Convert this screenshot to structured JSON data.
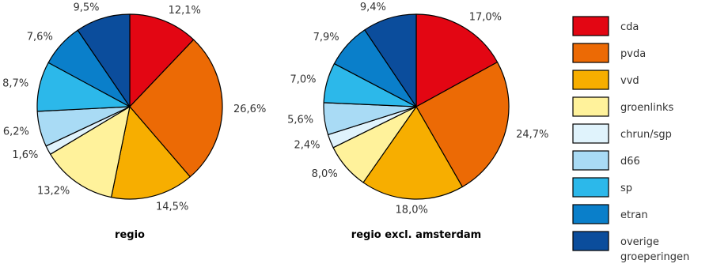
{
  "chart_data": [
    {
      "type": "pie",
      "title": "regio",
      "categories": [
        "cda",
        "pvda",
        "vvd",
        "groenlinks",
        "chrun/sgp",
        "d66",
        "sp",
        "etran",
        "overige groeperingen"
      ],
      "values": [
        12.1,
        26.6,
        14.5,
        13.2,
        1.6,
        6.2,
        8.7,
        7.6,
        9.5
      ],
      "value_labels": [
        "12,1%",
        "26,6%",
        "14,5%",
        "13,2%",
        "1,6%",
        "6,2%",
        "8,7%",
        "7,6%",
        "9,5%"
      ]
    },
    {
      "type": "pie",
      "title": "regio excl. amsterdam",
      "categories": [
        "cda",
        "pvda",
        "vvd",
        "groenlinks",
        "chrun/sgp",
        "d66",
        "sp",
        "etran",
        "overige groeperingen"
      ],
      "values": [
        17.0,
        24.7,
        18.0,
        8.0,
        2.4,
        5.6,
        7.0,
        7.9,
        9.4
      ],
      "value_labels": [
        "17,0%",
        "24,7%",
        "18,0%",
        "8,0%",
        "2,4%",
        "5,6%",
        "7,0%",
        "7,9%",
        "9,4%"
      ]
    }
  ],
  "legend": {
    "placement": "right",
    "items": [
      {
        "label": "cda",
        "color": "#e30613"
      },
      {
        "label": "pvda",
        "color": "#ec6a05"
      },
      {
        "label": "vvd",
        "color": "#f7ae00"
      },
      {
        "label": "groenlinks",
        "color": "#fff29b"
      },
      {
        "label": "chrun/sgp",
        "color": "#e0f3fc"
      },
      {
        "label": "d66",
        "color": "#a9dbf5"
      },
      {
        "label": "sp",
        "color": "#2cb8ea"
      },
      {
        "label": "etran",
        "color": "#0a7fca"
      },
      {
        "label": "overige groeperingen",
        "color": "#0b4d9c"
      }
    ]
  }
}
